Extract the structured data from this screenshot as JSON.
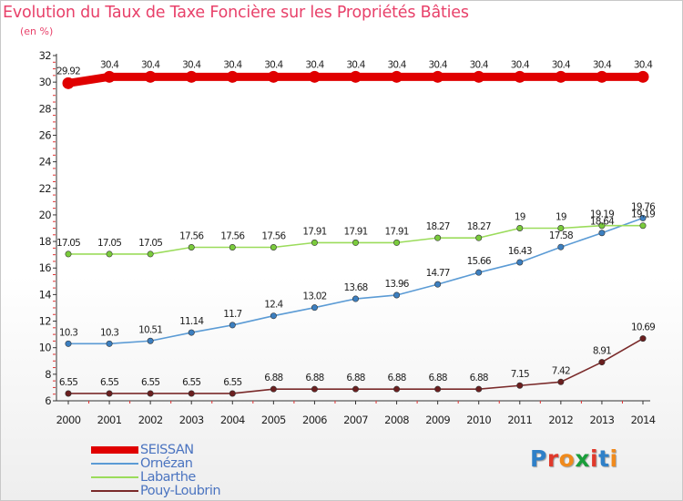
{
  "title": "Evolution du Taux de Taxe Foncière sur les Propriétés Bâties",
  "unit_label": "(en %)",
  "logo": {
    "text": "Proxiti",
    "colors": [
      "#2f80c8",
      "#e0392b",
      "#f08a1c",
      "#1a9e3a",
      "#e0392b",
      "#2f80c8",
      "#f08a1c"
    ]
  },
  "chart_data": {
    "type": "line",
    "title": "Evolution du Taux de Taxe Foncière sur les Propriétés Bâties",
    "ylabel": "(en %)",
    "xlabel": "",
    "categories": [
      "2000",
      "2001",
      "2002",
      "2003",
      "2004",
      "2005",
      "2006",
      "2007",
      "2008",
      "2009",
      "2010",
      "2011",
      "2012",
      "2013",
      "2014"
    ],
    "ylim": [
      6,
      32
    ],
    "yticks": [
      "6",
      "8",
      "10",
      "12",
      "14",
      "16",
      "18",
      "20",
      "22",
      "24",
      "26",
      "28",
      "30",
      "32"
    ],
    "grid": false,
    "legend_position": "bottom-left",
    "series": [
      {
        "name": "SEISSAN",
        "color": "#e00000",
        "emphasis": true,
        "values": [
          29.92,
          30.4,
          30.4,
          30.4,
          30.4,
          30.4,
          30.4,
          30.4,
          30.4,
          30.4,
          30.4,
          30.4,
          30.4,
          30.4,
          30.4
        ],
        "labels": [
          "29.92",
          "30.4",
          "30.4",
          "30.4",
          "30.4",
          "30.4",
          "30.4",
          "30.4",
          "30.4",
          "30.4",
          "30.4",
          "30.4",
          "30.4",
          "30.4",
          "30.4"
        ]
      },
      {
        "name": "Ornézan",
        "color": "#5b9bd5",
        "marker": "#3c7fc0",
        "values": [
          10.3,
          10.3,
          10.51,
          11.14,
          11.7,
          12.4,
          13.02,
          13.68,
          13.96,
          14.77,
          15.66,
          16.43,
          17.58,
          18.64,
          19.76
        ],
        "labels": [
          "10.3",
          "10.3",
          "10.51",
          "11.14",
          "11.7",
          "12.4",
          "13.02",
          "13.68",
          "13.96",
          "14.77",
          "15.66",
          "16.43",
          "17.58",
          "18.64",
          "19.76"
        ]
      },
      {
        "name": "Labarthe",
        "color": "#9bdc5b",
        "marker": "#7acb3c",
        "values": [
          17.05,
          17.05,
          17.05,
          17.56,
          17.56,
          17.56,
          17.91,
          17.91,
          17.91,
          18.27,
          18.27,
          19,
          19,
          19.19,
          19.19
        ],
        "labels": [
          "17.05",
          "17.05",
          "17.05",
          "17.56",
          "17.56",
          "17.56",
          "17.91",
          "17.91",
          "17.91",
          "18.27",
          "18.27",
          "19",
          "19",
          "19.19",
          "19.19"
        ]
      },
      {
        "name": "Pouy-Loubrin",
        "color": "#7a2a2a",
        "marker": "#6b1f1f",
        "values": [
          6.55,
          6.55,
          6.55,
          6.55,
          6.55,
          6.88,
          6.88,
          6.88,
          6.88,
          6.88,
          6.88,
          7.15,
          7.42,
          8.91,
          10.69
        ],
        "labels": [
          "6.55",
          "6.55",
          "6.55",
          "6.55",
          "6.55",
          "6.88",
          "6.88",
          "6.88",
          "6.88",
          "6.88",
          "6.88",
          "7.15",
          "7.42",
          "8.91",
          "10.69"
        ]
      }
    ]
  }
}
